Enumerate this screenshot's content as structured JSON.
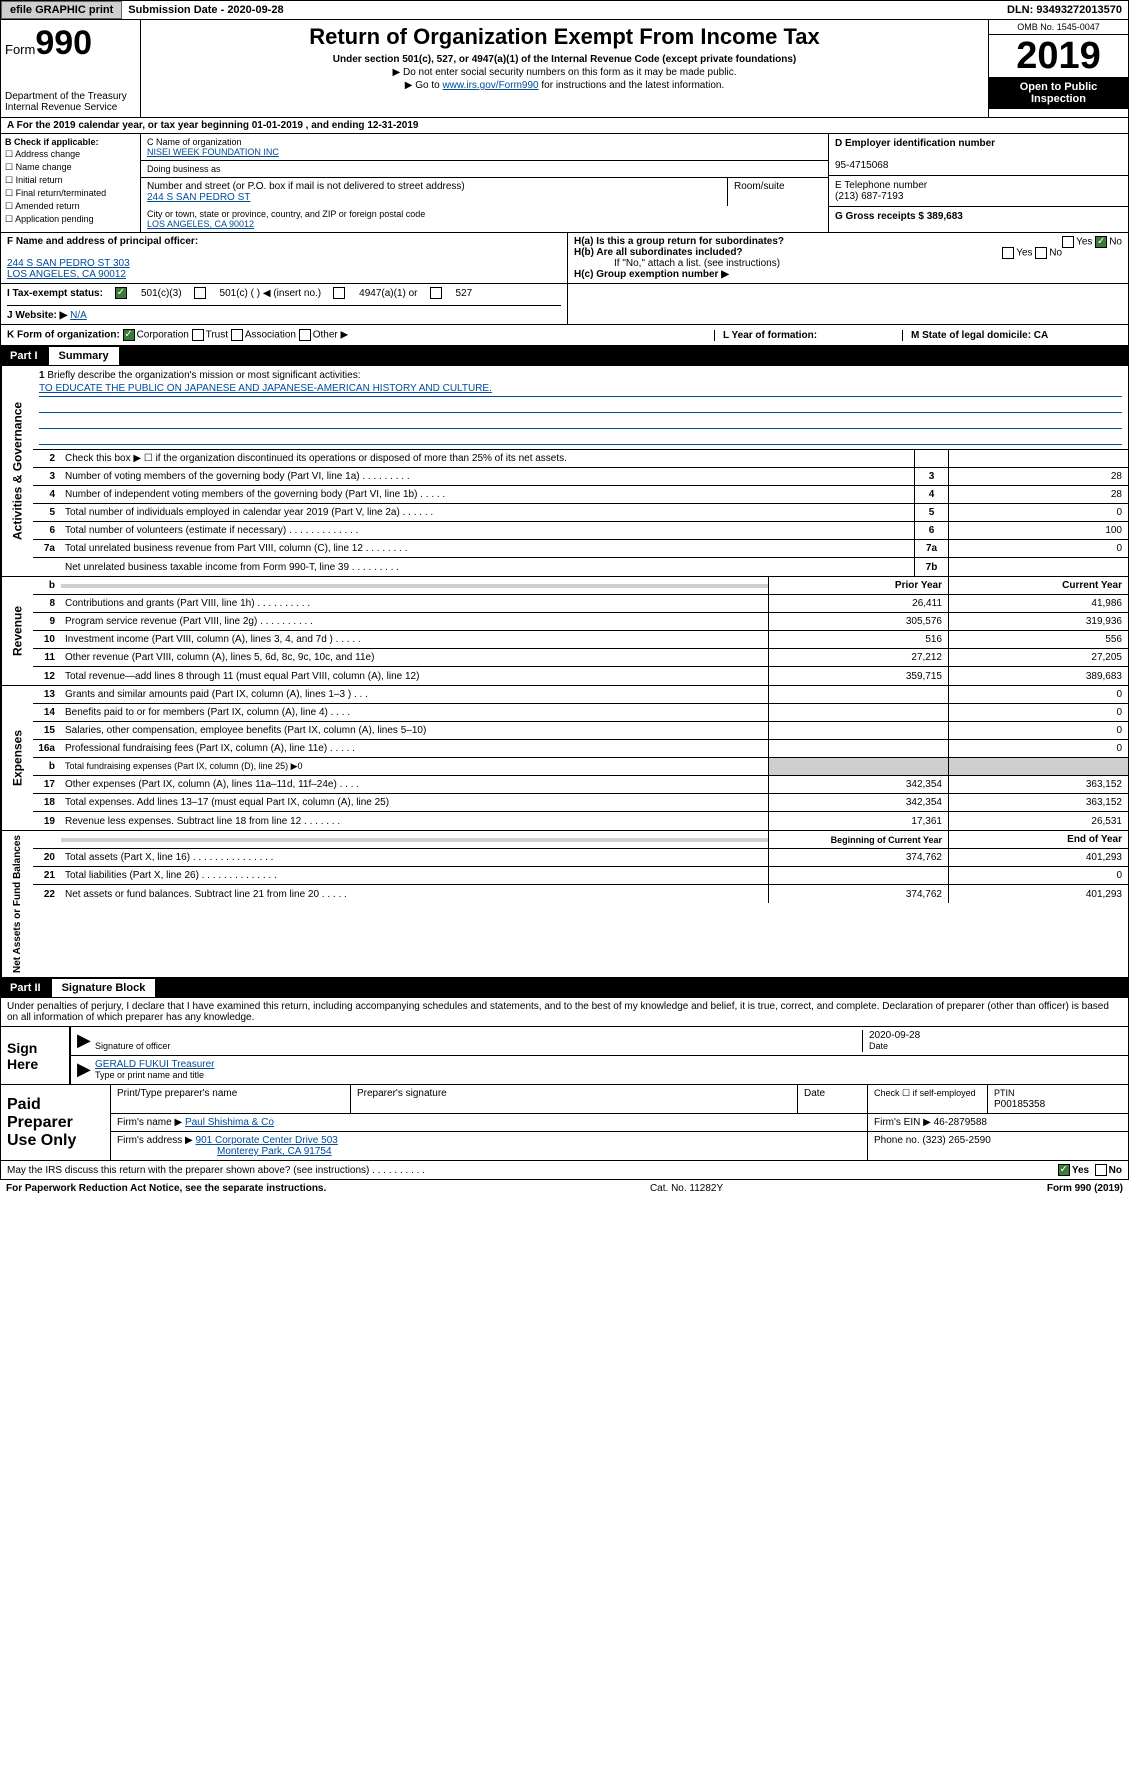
{
  "topbar": {
    "efile": "efile GRAPHIC print",
    "subdate_label": "Submission Date - 2020-09-28",
    "dln": "DLN: 93493272013570"
  },
  "header": {
    "form_prefix": "Form",
    "form_number": "990",
    "dept": "Department of the Treasury Internal Revenue Service",
    "title": "Return of Organization Exempt From Income Tax",
    "subtitle": "Under section 501(c), 527, or 4947(a)(1) of the Internal Revenue Code (except private foundations)",
    "note1": "▶ Do not enter social security numbers on this form as it may be made public.",
    "note2_prefix": "▶ Go to ",
    "note2_link": "www.irs.gov/Form990",
    "note2_suffix": " for instructions and the latest information.",
    "omb": "OMB No. 1545-0047",
    "year": "2019",
    "inspection": "Open to Public Inspection"
  },
  "row_a": "A For the 2019 calendar year, or tax year beginning 01-01-2019   , and ending 12-31-2019",
  "section_b": {
    "header": "B Check if applicable:",
    "items": [
      "☐ Address change",
      "☐ Name change",
      "☐ Initial return",
      "☐ Final return/terminated",
      "☐ Amended return",
      "☐ Application pending"
    ]
  },
  "section_c": {
    "name_label": "C Name of organization",
    "name": "NISEI WEEK FOUNDATION INC",
    "dba": "Doing business as",
    "addr_label": "Number and street (or P.O. box if mail is not delivered to street address)",
    "room_label": "Room/suite",
    "addr": "244 S SAN PEDRO ST",
    "city_label": "City or town, state or province, country, and ZIP or foreign postal code",
    "city": "LOS ANGELES, CA  90012"
  },
  "section_d": {
    "label": "D Employer identification number",
    "value": "95-4715068"
  },
  "section_e": {
    "label": "E Telephone number",
    "value": "(213) 687-7193"
  },
  "section_g": {
    "label": "G Gross receipts $ 389,683"
  },
  "section_f": {
    "label": "F Name and address of principal officer:",
    "addr1": "244 S SAN PEDRO ST 303",
    "addr2": "LOS ANGELES, CA  90012"
  },
  "section_h": {
    "ha": "H(a)  Is this a group return for subordinates?",
    "ha_yes": "Yes",
    "ha_no": "No",
    "hb": "H(b)  Are all subordinates included?",
    "hb_yes": "Yes",
    "hb_no": "No",
    "hb_note": "If \"No,\" attach a list. (see instructions)",
    "hc": "H(c)  Group exemption number ▶"
  },
  "status": {
    "label": "I    Tax-exempt status:",
    "opt1": "501(c)(3)",
    "opt2": "501(c) (  ) ◀ (insert no.)",
    "opt3": "4947(a)(1) or",
    "opt4": "527"
  },
  "website": {
    "label": "J   Website: ▶",
    "value": "N/A"
  },
  "korg": {
    "k": "K Form of organization:",
    "k1": "Corporation",
    "k2": "Trust",
    "k3": "Association",
    "k4": "Other ▶",
    "l": "L Year of formation:",
    "m": "M State of legal domicile: CA"
  },
  "part1": {
    "label": "Part I",
    "title": "Summary"
  },
  "mission": {
    "num": "1",
    "label": "Briefly describe the organization's mission or most significant activities:",
    "text": "TO EDUCATE THE PUBLIC ON JAPANESE AND JAPANESE-AMERICAN HISTORY AND CULTURE."
  },
  "gov_lines": [
    {
      "num": "2",
      "desc": "Check this box ▶ ☐  if the organization discontinued its operations or disposed of more than 25% of its net assets.",
      "box": "",
      "val": ""
    },
    {
      "num": "3",
      "desc": "Number of voting members of the governing body (Part VI, line 1a)  .   .   .   .   .   .   .   .   .",
      "box": "3",
      "val": "28"
    },
    {
      "num": "4",
      "desc": "Number of independent voting members of the governing body (Part VI, line 1b)  .   .   .   .   .",
      "box": "4",
      "val": "28"
    },
    {
      "num": "5",
      "desc": "Total number of individuals employed in calendar year 2019 (Part V, line 2a)  .   .   .   .   .   .",
      "box": "5",
      "val": "0"
    },
    {
      "num": "6",
      "desc": "Total number of volunteers (estimate if necessary)  .   .   .   .   .   .   .   .   .   .   .   .   .",
      "box": "6",
      "val": "100"
    },
    {
      "num": "7a",
      "desc": "Total unrelated business revenue from Part VIII, column (C), line 12  .   .   .   .   .   .   .   .",
      "box": "7a",
      "val": "0"
    },
    {
      "num": "",
      "desc": "Net unrelated business taxable income from Form 990-T, line 39   .   .   .   .   .   .   .   .   .",
      "box": "7b",
      "val": ""
    }
  ],
  "rev_head": {
    "b": "b",
    "prior": "Prior Year",
    "current": "Current Year"
  },
  "rev_lines": [
    {
      "num": "8",
      "desc": "Contributions and grants (Part VIII, line 1h)  .   .   .   .   .   .   .   .   .   .",
      "v1": "26,411",
      "v2": "41,986"
    },
    {
      "num": "9",
      "desc": "Program service revenue (Part VIII, line 2g)  .   .   .   .   .   .   .   .   .   .",
      "v1": "305,576",
      "v2": "319,936"
    },
    {
      "num": "10",
      "desc": "Investment income (Part VIII, column (A), lines 3, 4, and 7d )  .   .   .   .   .",
      "v1": "516",
      "v2": "556"
    },
    {
      "num": "11",
      "desc": "Other revenue (Part VIII, column (A), lines 5, 6d, 8c, 9c, 10c, and 11e)",
      "v1": "27,212",
      "v2": "27,205"
    },
    {
      "num": "12",
      "desc": "Total revenue—add lines 8 through 11 (must equal Part VIII, column (A), line 12)",
      "v1": "359,715",
      "v2": "389,683"
    }
  ],
  "exp_lines": [
    {
      "num": "13",
      "desc": "Grants and similar amounts paid (Part IX, column (A), lines 1–3 )  .   .   .",
      "v1": "",
      "v2": "0"
    },
    {
      "num": "14",
      "desc": "Benefits paid to or for members (Part IX, column (A), line 4)  .   .   .   .",
      "v1": "",
      "v2": "0"
    },
    {
      "num": "15",
      "desc": "Salaries, other compensation, employee benefits (Part IX, column (A), lines 5–10)",
      "v1": "",
      "v2": "0"
    },
    {
      "num": "16a",
      "desc": "Professional fundraising fees (Part IX, column (A), line 11e)  .   .   .   .   .",
      "v1": "",
      "v2": "0"
    },
    {
      "num": "b",
      "desc": "Total fundraising expenses (Part IX, column (D), line 25) ▶0",
      "v1": "shade",
      "v2": "shade"
    },
    {
      "num": "17",
      "desc": "Other expenses (Part IX, column (A), lines 11a–11d, 11f–24e)  .   .   .   .",
      "v1": "342,354",
      "v2": "363,152"
    },
    {
      "num": "18",
      "desc": "Total expenses. Add lines 13–17 (must equal Part IX, column (A), line 25)",
      "v1": "342,354",
      "v2": "363,152"
    },
    {
      "num": "19",
      "desc": "Revenue less expenses. Subtract line 18 from line 12  .   .   .   .   .   .   .",
      "v1": "17,361",
      "v2": "26,531"
    }
  ],
  "net_head": {
    "prior": "Beginning of Current Year",
    "current": "End of Year"
  },
  "net_lines": [
    {
      "num": "20",
      "desc": "Total assets (Part X, line 16)  .   .   .   .   .   .   .   .   .   .   .   .   .   .   .",
      "v1": "374,762",
      "v2": "401,293"
    },
    {
      "num": "21",
      "desc": "Total liabilities (Part X, line 26)  .   .   .   .   .   .   .   .   .   .   .   .   .   .",
      "v1": "",
      "v2": "0"
    },
    {
      "num": "22",
      "desc": "Net assets or fund balances. Subtract line 21 from line 20  .   .   .   .   .",
      "v1": "374,762",
      "v2": "401,293"
    }
  ],
  "part2": {
    "label": "Part II",
    "title": "Signature Block"
  },
  "sig": {
    "perjury": "Under penalties of perjury, I declare that I have examined this return, including accompanying schedules and statements, and to the best of my knowledge and belief, it is true, correct, and complete. Declaration of preparer (other than officer) is based on all information of which preparer has any knowledge.",
    "sign_here": "Sign Here",
    "sig_officer": "Signature of officer",
    "date": "2020-09-28",
    "date_label": "Date",
    "name": "GERALD FUKUI  Treasurer",
    "name_label": "Type or print name and title"
  },
  "paid": {
    "label": "Paid Preparer Use Only",
    "h1": "Print/Type preparer's name",
    "h2": "Preparer's signature",
    "h3": "Date",
    "h4": "Check ☐ if self-employed",
    "h5_label": "PTIN",
    "h5": "P00185358",
    "firm_label": "Firm's name    ▶",
    "firm": "Paul Shishima & Co",
    "ein_label": "Firm's EIN ▶",
    "ein": "46-2879588",
    "addr_label": "Firm's address ▶",
    "addr1": "901 Corporate Center Drive 503",
    "addr2": "Monterey Park, CA  91754",
    "phone_label": "Phone no.",
    "phone": "(323) 265-2590"
  },
  "footer": {
    "discuss": "May the IRS discuss this return with the preparer shown above? (see instructions)   .   .   .   .   .   .   .   .   .   .",
    "yes": "Yes",
    "no": "No",
    "pra": "For Paperwork Reduction Act Notice, see the separate instructions.",
    "cat": "Cat. No. 11282Y",
    "form": "Form 990 (2019)"
  },
  "vtabs": {
    "gov": "Activities & Governance",
    "rev": "Revenue",
    "exp": "Expenses",
    "net": "Net Assets or Fund Balances"
  }
}
